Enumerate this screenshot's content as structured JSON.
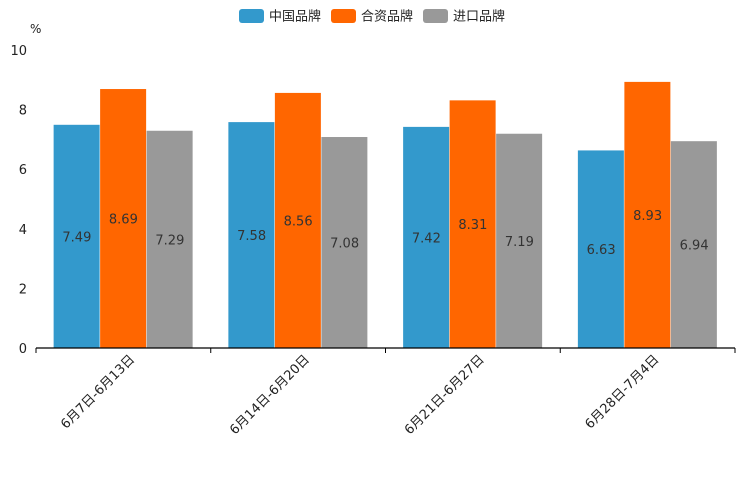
{
  "chart_data": {
    "type": "bar",
    "title": "",
    "xlabel": "",
    "ylabel": "%",
    "ylim": [
      0,
      10
    ],
    "yticks": [
      0,
      2,
      4,
      6,
      8,
      10
    ],
    "categories": [
      "6月7日-6月13日",
      "6月14日-6月20日",
      "6月21日-6月27日",
      "6月28日-7月4日"
    ],
    "series": [
      {
        "name": "中国品牌",
        "color": "#3399cc",
        "values": [
          7.49,
          7.58,
          7.42,
          6.63
        ]
      },
      {
        "name": "合资品牌",
        "color": "#ff6600",
        "values": [
          8.69,
          8.56,
          8.31,
          8.93
        ]
      },
      {
        "name": "进口品牌",
        "color": "#999999",
        "values": [
          7.29,
          7.08,
          7.19,
          6.94
        ]
      }
    ],
    "legend_position": "top-center",
    "grid": false
  }
}
